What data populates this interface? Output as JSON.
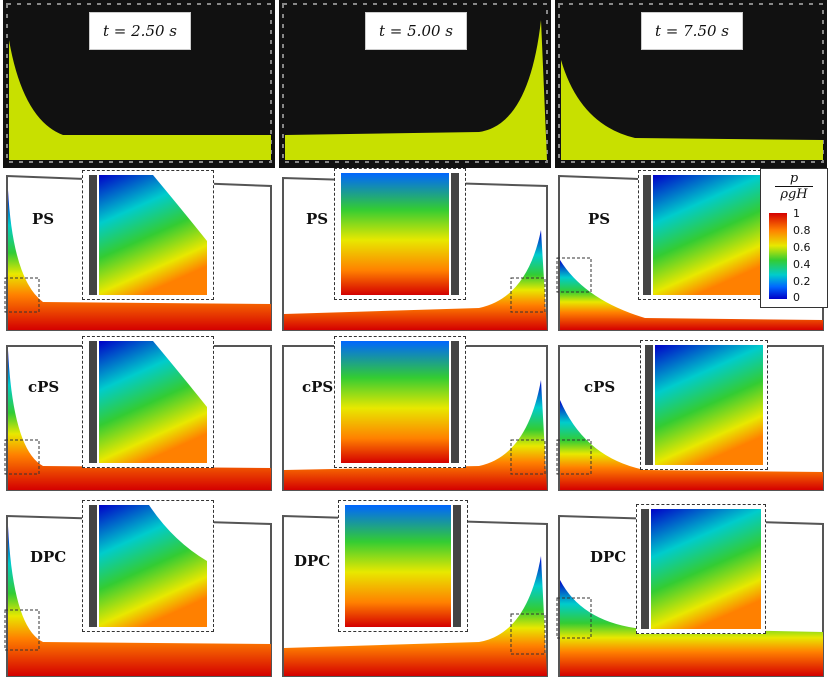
{
  "time_labels": [
    "t = 2.50 s",
    "t = 5.00 s",
    "t = 7.50 s"
  ],
  "methods": [
    "PS",
    "cPS",
    "DPC"
  ],
  "colorbar": {
    "numerator": "p",
    "denominator": "ρgH",
    "ticks": [
      "1",
      "0.8",
      "0.6",
      "0.4",
      "0.2",
      "0"
    ],
    "colors": [
      "#d40000",
      "#ff8000",
      "#e8e800",
      "#33cc33",
      "#00cccc",
      "#0066ff",
      "#0000c8"
    ]
  },
  "photo_colors": {
    "background": "#111111",
    "liquid": "#c8e000"
  }
}
